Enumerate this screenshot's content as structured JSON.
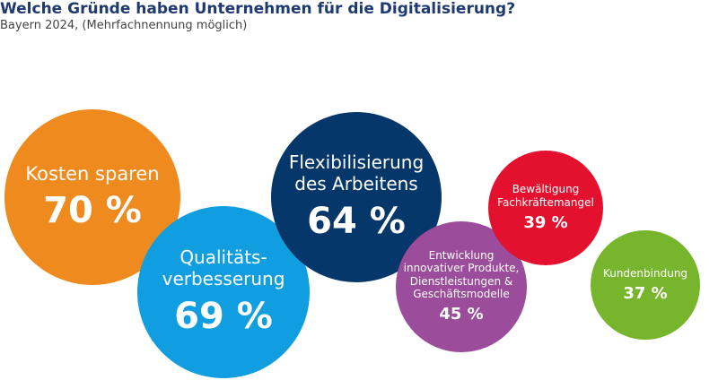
{
  "title": "Welche Gründe haben Unternehmen für die Digitalisierung?",
  "subtitle": "Bayern 2024, (Mehrfachnennung möglich)",
  "chart_data": {
    "type": "bubble",
    "unit": "%",
    "items": [
      {
        "label": "Kosten sparen",
        "value": 70,
        "value_label": "70 %",
        "color": "#ef8a1e"
      },
      {
        "label": "Qualitäts-\nverbesserung",
        "value": 69,
        "value_label": "69 %",
        "color": "#109ee0"
      },
      {
        "label": "Flexibilisierung\ndes Arbeitens",
        "value": 64,
        "value_label": "64 %",
        "color": "#06376a"
      },
      {
        "label": "Entwicklung\ninnovativer Produkte,\nDienstleistungen &\nGeschäftsmodelle",
        "value": 45,
        "value_label": "45 %",
        "color": "#9b4c9a"
      },
      {
        "label": "Bewältigung\nFachkräftemangel",
        "value": 39,
        "value_label": "39 %",
        "color": "#e3102e"
      },
      {
        "label": "Kundenbindung",
        "value": 37,
        "value_label": "37 %",
        "color": "#77b52c"
      }
    ]
  }
}
